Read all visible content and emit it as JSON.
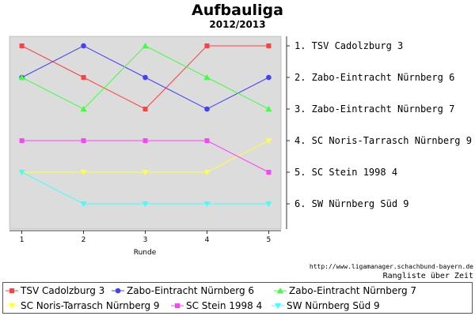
{
  "title": "Aufbauliga",
  "subtitle": "2012/2013",
  "source": "http://www.ligamanager.schachbund-bayern.de",
  "note": "Rangliste über Zeit",
  "chart_data": {
    "type": "line",
    "xlabel": "Runde",
    "ylabel": "",
    "x": [
      1,
      2,
      3,
      4,
      5
    ],
    "xlim": [
      0.8,
      5.2
    ],
    "ylim": [
      6.8,
      0.7
    ],
    "y_inverted": true,
    "grid": false,
    "legend_position": "bottom",
    "rank_labels": [
      "1. TSV Cadolzburg 3",
      "2. Zabo-Eintracht Nürnberg 6",
      "3. Zabo-Eintracht Nürnberg 7",
      "4. SC Noris-Tarrasch Nürnberg 9",
      "5. SC Stein 1998 4",
      "6. SW Nürnberg Süd 9"
    ],
    "series": [
      {
        "name": "TSV Cadolzburg 3",
        "values": [
          1,
          2,
          3,
          1,
          1
        ],
        "color": "#ff4040",
        "marker": "square"
      },
      {
        "name": "Zabo-Eintracht Nürnberg 6",
        "values": [
          2,
          1,
          2,
          3,
          2
        ],
        "color": "#4040ff",
        "marker": "circle"
      },
      {
        "name": "Zabo-Eintracht Nürnberg 7",
        "values": [
          2,
          3,
          1,
          2,
          3
        ],
        "color": "#40ff40",
        "marker": "triangle-up"
      },
      {
        "name": "SC Noris-Tarrasch Nürnberg 9",
        "values": [
          5,
          5,
          5,
          5,
          4
        ],
        "color": "#ffff40",
        "marker": "triangle-down"
      },
      {
        "name": "SC Stein 1998 4",
        "values": [
          4,
          4,
          4,
          4,
          5
        ],
        "color": "#ff40ff",
        "marker": "square"
      },
      {
        "name": "SW Nürnberg Süd 9",
        "values": [
          5,
          6,
          6,
          6,
          6
        ],
        "color": "#40ffff",
        "marker": "triangle-down"
      }
    ]
  }
}
